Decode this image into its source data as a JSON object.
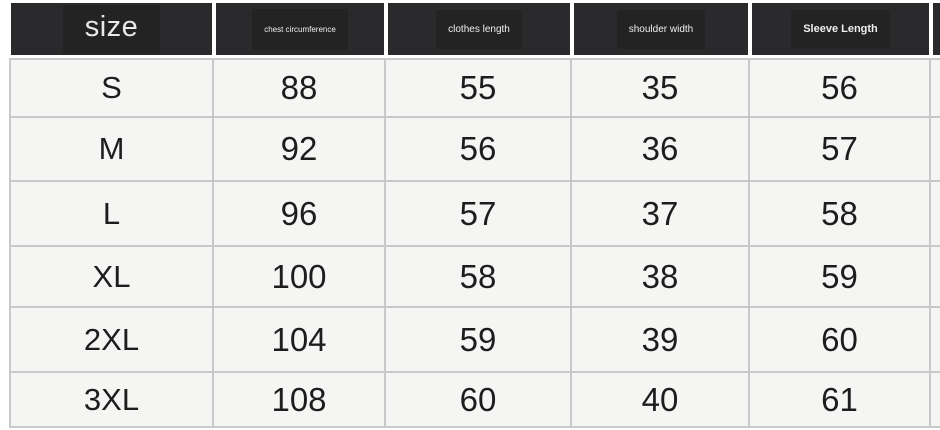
{
  "chart_data": {
    "type": "table",
    "columns": [
      "size",
      "chest circumference",
      "clothes length",
      "shoulder width",
      "Sleeve Length"
    ],
    "rows": [
      [
        "S",
        "88",
        "55",
        "35",
        "56"
      ],
      [
        "M",
        "92",
        "56",
        "36",
        "57"
      ],
      [
        "L",
        "96",
        "57",
        "37",
        "58"
      ],
      [
        "XL",
        "100",
        "58",
        "38",
        "59"
      ],
      [
        "2XL",
        "104",
        "59",
        "39",
        "60"
      ],
      [
        "3XL",
        "108",
        "60",
        "40",
        "61"
      ]
    ],
    "layout_hints": {
      "partial_sixth_column_clipped_at_right": true,
      "header_style": "dark blocks with white gaps",
      "grid": "on"
    }
  },
  "colors": {
    "header_bg": "#2a2a2c",
    "header_text": "#efefef",
    "body_bg": "#f5f5f3",
    "grid_line": "#c9c9c9",
    "body_text": "#1d1d1d",
    "page_bg": "#ffffff"
  }
}
